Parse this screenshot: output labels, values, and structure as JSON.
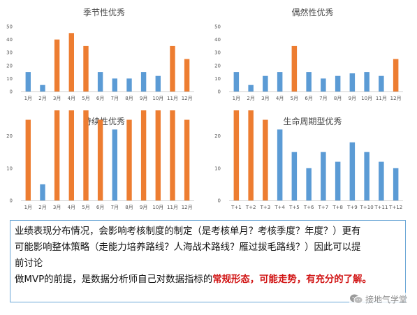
{
  "colors": {
    "normal": "#5b9bd5",
    "highlight": "#ed7d31"
  },
  "chart_data": [
    {
      "type": "bar",
      "title": "季节性优秀",
      "categories": [
        "1月",
        "2月",
        "3月",
        "4月",
        "5月",
        "6月",
        "7月",
        "8月",
        "9月",
        "10月",
        "11月",
        "12月"
      ],
      "values": [
        15,
        5,
        40,
        45,
        35,
        15,
        10,
        10,
        15,
        12,
        35,
        25
      ],
      "highlight": [
        false,
        false,
        true,
        true,
        true,
        false,
        false,
        false,
        false,
        false,
        true,
        true
      ],
      "ylim": [
        0,
        50
      ],
      "yticks": [
        0,
        10,
        20,
        30,
        40,
        50
      ],
      "grid": false,
      "legend": "none"
    },
    {
      "type": "bar",
      "title": "偶然性优秀",
      "categories": [
        "1月",
        "2月",
        "3月",
        "4月",
        "5月",
        "6月",
        "7月",
        "8月",
        "9月",
        "10月",
        "11月",
        "12月"
      ],
      "values": [
        15,
        5,
        12,
        15,
        35,
        15,
        10,
        12,
        14,
        15,
        12,
        25
      ],
      "highlight": [
        false,
        false,
        false,
        false,
        true,
        false,
        false,
        false,
        false,
        false,
        false,
        true
      ],
      "ylim": [
        0,
        50
      ],
      "yticks": [
        0,
        10,
        20,
        30,
        40,
        50
      ],
      "grid": false,
      "legend": "none"
    },
    {
      "type": "bar",
      "title": "持续性优秀",
      "categories": [
        "1月",
        "2月",
        "3月",
        "4月",
        "5月",
        "6月",
        "7月",
        "8月",
        "9月",
        "10月",
        "11月",
        "12月"
      ],
      "values": [
        25,
        5,
        40,
        35,
        36,
        25,
        22,
        25,
        30,
        32,
        28,
        25
      ],
      "highlight": [
        true,
        false,
        true,
        true,
        true,
        true,
        false,
        true,
        true,
        true,
        true,
        true
      ],
      "ylim": [
        0,
        50
      ],
      "yticks": [
        0,
        10,
        20,
        30,
        40,
        50
      ],
      "grid": false,
      "legend": "none"
    },
    {
      "type": "bar",
      "title": "生命周期型优秀",
      "categories": [
        "T+1",
        "T+2",
        "T+3",
        "T+4",
        "T+5",
        "T+6",
        "T+7",
        "T+8",
        "T+9",
        "T+10",
        "T+11",
        "T+12"
      ],
      "values": [
        30,
        28,
        25,
        22,
        15,
        10,
        15,
        12,
        18,
        15,
        12,
        10
      ],
      "highlight": [
        true,
        true,
        true,
        false,
        false,
        false,
        false,
        false,
        false,
        false,
        false,
        false
      ],
      "ylim": [
        0,
        50
      ],
      "yticks": [
        0,
        10,
        20,
        30,
        40,
        50
      ],
      "grid": false,
      "legend": "none"
    }
  ],
  "text_box": {
    "p1": "业绩表现分布情况，会影响考核制度的制定（是考核单月？考核季度？年度？）更有",
    "p2": "可能影响整体策略（走能力培养路线？人海战术路线？雁过拔毛路线？）因此可以提",
    "p3": "前讨论",
    "p4_prefix": "做MVP的前提，是数据分析师自己对数据指标的",
    "p4_highlight": "常规形态，可能走势，有充分的了解。"
  },
  "watermark": {
    "icon": "wechat-icon",
    "text": "接地气学堂"
  }
}
